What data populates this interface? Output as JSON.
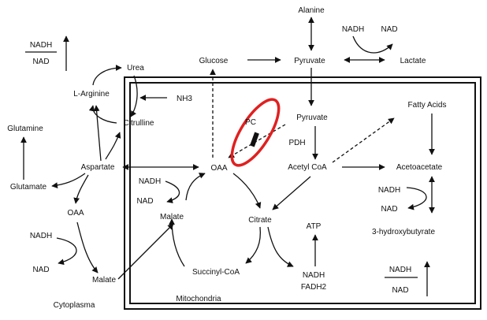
{
  "colors": {
    "line": "#111111",
    "highlight": "#e02020",
    "box": "#111111",
    "background": "#ffffff"
  },
  "compartments": {
    "cytoplasma": "Cytoplasma",
    "mitochondria": "Mitochondria"
  },
  "metabolites": {
    "alanine": "Alanine",
    "nadh_top": "NADH",
    "nad_top": "NAD",
    "lactate": "Lactate",
    "glucose": "Glucose",
    "pyruvate_cyto": "Pyruvate",
    "urea": "Urea",
    "l_arginine": "L-Arginine",
    "nh3": "NH3",
    "citrulline": "Citrulline",
    "glutamine": "Glutamine",
    "glutamate": "Glutamate",
    "aspartate": "Aspartate",
    "oaa_cyto": "OAA",
    "nadh_left": "NADH",
    "nad_left": "NAD",
    "malate_cyto": "Malate",
    "nadh_corner": "NADH",
    "nad_corner": "NAD",
    "pyruvate_mito": "Pyruvate",
    "pc": "PC",
    "pdh": "PDH",
    "acetyl_coa": "Acetyl CoA",
    "fatty_acids": "Fatty Acids",
    "acetoacetate": "Acetoacetate",
    "nadh_ketone": "NADH",
    "nad_ketone": "NAD",
    "hydroxybutyrate": "3-hydroxybutyrate",
    "oaa_mito": "OAA",
    "nadh_mito": "NADH",
    "nad_mito": "NAD",
    "malate_mito": "Malate",
    "citrate": "Citrate",
    "succinyl_coa": "Succinyl-CoA",
    "atp": "ATP",
    "nadh_fadh": "NADH",
    "fadh2": "FADH2",
    "nadh_br": "NADH",
    "nad_br": "NAD"
  }
}
